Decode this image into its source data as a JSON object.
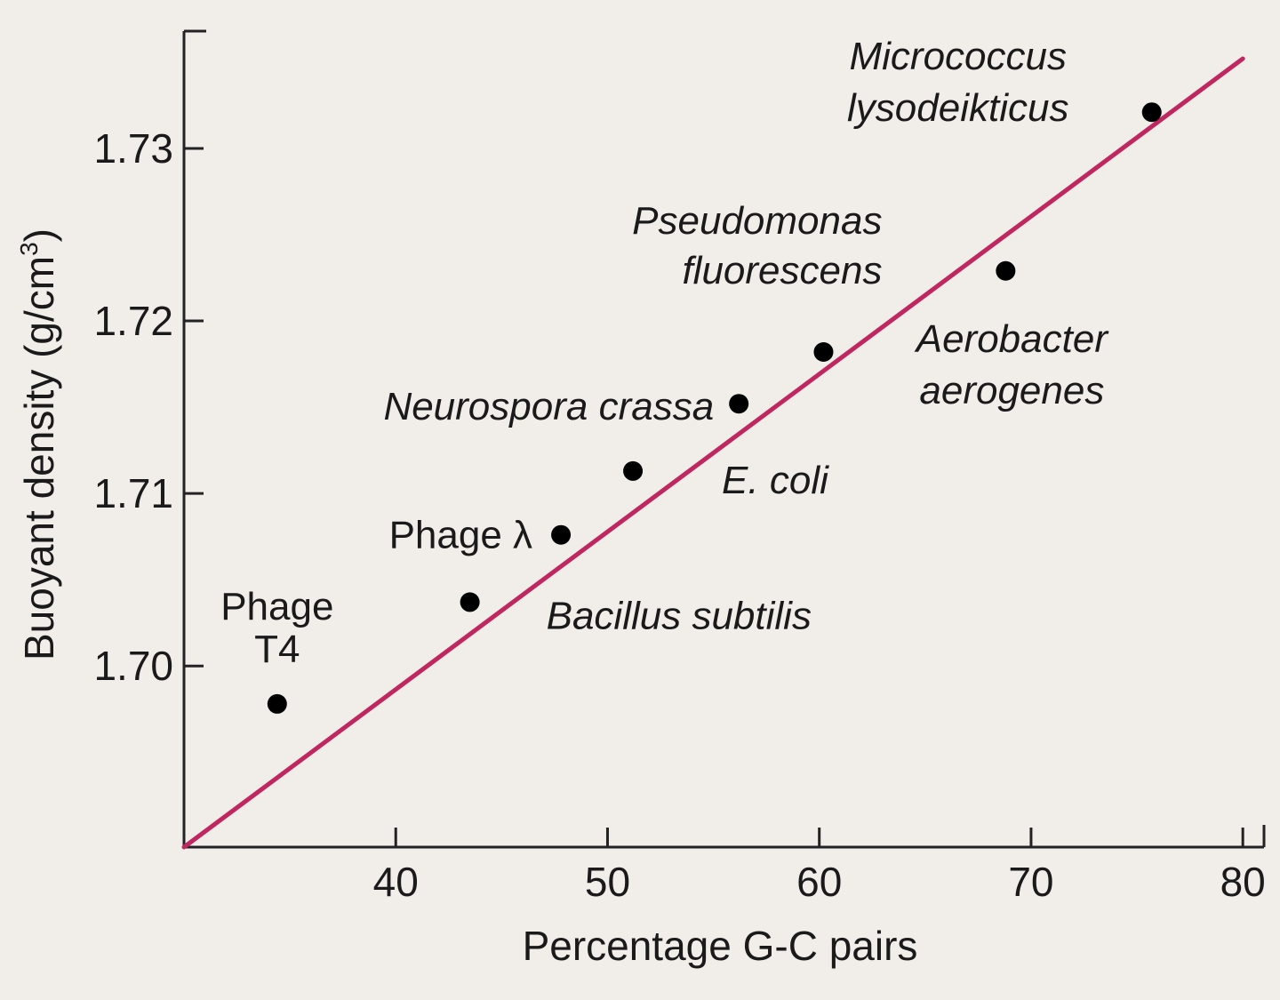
{
  "chart_data": {
    "type": "scatter",
    "xlabel": "Percentage G-C pairs",
    "ylabel": "Buoyant density (g/cm",
    "ylabel_superscript": "3",
    "ylabel_close": ")",
    "xlim": [
      30,
      81
    ],
    "ylim": [
      1.6895,
      1.7368
    ],
    "x_ticks": [
      40,
      50,
      60,
      70,
      80
    ],
    "x_tick_labels": [
      "40",
      "50",
      "60",
      "70",
      "80"
    ],
    "y_ticks": [
      1.7,
      1.71,
      1.72,
      1.73
    ],
    "y_tick_labels": [
      "1.70",
      "1.71",
      "1.72",
      "1.73"
    ],
    "grid": false,
    "points": [
      {
        "label": "Phage T4",
        "label_lines": [
          "Phage",
          "T4"
        ],
        "italic": false,
        "x": 34.4,
        "y": 1.6978
      },
      {
        "label": "Bacillus subtilis",
        "label_lines": [
          "Bacillus subtilis"
        ],
        "italic": true,
        "x": 43.5,
        "y": 1.7037
      },
      {
        "label": "Phage λ",
        "label_lines": [
          "Phage λ"
        ],
        "italic": false,
        "x": 47.8,
        "y": 1.7076
      },
      {
        "label": "E. coli",
        "label_lines": [
          "E. coli"
        ],
        "italic": true,
        "x": 51.2,
        "y": 1.7113
      },
      {
        "label": "Neurospora crassa",
        "label_lines": [
          "Neurospora crassa"
        ],
        "italic": true,
        "x": 56.2,
        "y": 1.7152
      },
      {
        "label": "Pseudomonas fluorescens",
        "label_lines": [
          "Pseudomonas",
          "fluorescens"
        ],
        "italic": true,
        "x": 60.2,
        "y": 1.7182
      },
      {
        "label": "Aerobacter aerogenes",
        "label_lines": [
          "Aerobacter",
          "aerogenes"
        ],
        "italic": true,
        "x": 68.8,
        "y": 1.7229
      },
      {
        "label": "Micrococcus lysodeikticus",
        "label_lines": [
          "Micrococcus",
          "lysodeikticus"
        ],
        "italic": true,
        "x": 75.7,
        "y": 1.7321
      }
    ],
    "fit_line": {
      "x": [
        30,
        80
      ],
      "y": [
        1.6895,
        1.7352
      ],
      "color": "#c0265f"
    },
    "point_color": "#000000",
    "background_color": "#f1eee9"
  }
}
